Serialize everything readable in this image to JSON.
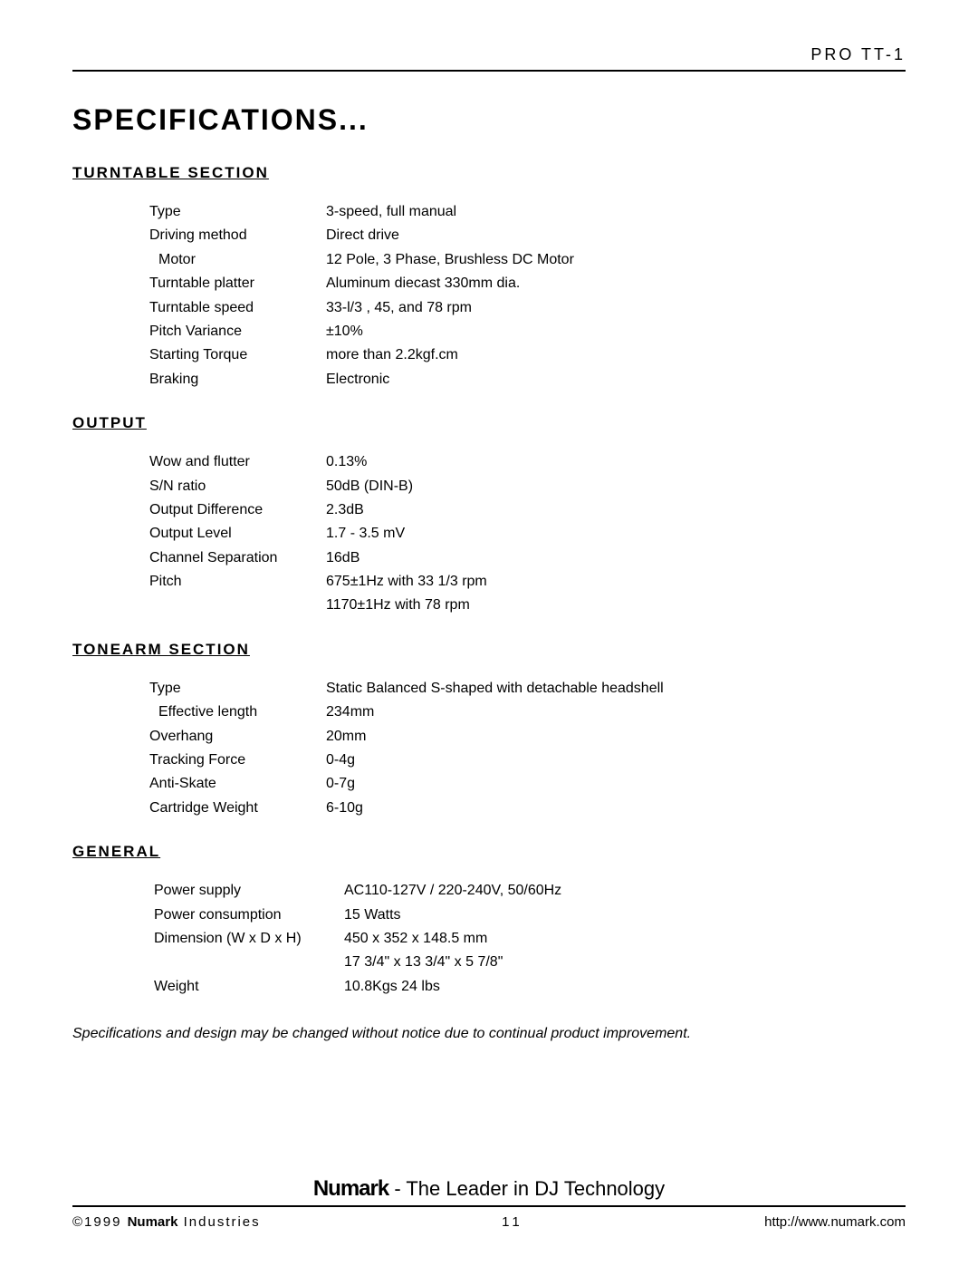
{
  "header": {
    "model": "PRO TT-1"
  },
  "title": "SPECIFICATIONS...",
  "sections": {
    "turntable": {
      "heading": "TURNTABLE SECTION",
      "rows": [
        {
          "label": "Type",
          "value": "3-speed, full manual",
          "indent": false
        },
        {
          "label": "Driving method",
          "value": "Direct drive",
          "indent": false
        },
        {
          "label": "Motor",
          "value": "12 Pole, 3 Phase, Brushless DC Motor",
          "indent": true
        },
        {
          "label": "Turntable platter",
          "value": "Aluminum diecast 330mm dia.",
          "indent": false
        },
        {
          "label": "Turntable speed",
          "value": "33-l/3 , 45, and 78 rpm",
          "indent": false
        },
        {
          "label": "Pitch Variance",
          "value": "±10%",
          "indent": false
        },
        {
          "label": "Starting Torque",
          "value": "more than 2.2kgf.cm",
          "indent": false
        },
        {
          "label": "Braking",
          "value": "Electronic",
          "indent": false
        }
      ]
    },
    "output": {
      "heading": "OUTPUT",
      "rows": [
        {
          "label": "Wow and flutter",
          "value": "0.13%",
          "indent": false
        },
        {
          "label": "S/N ratio",
          "value": "50dB (DIN-B)",
          "indent": false
        },
        {
          "label": "Output Difference",
          "value": "2.3dB",
          "indent": false
        },
        {
          "label": "Output Level",
          "value": "1.7 - 3.5 mV",
          "indent": false
        },
        {
          "label": "Channel Separation",
          "value": "16dB",
          "indent": false
        },
        {
          "label": "Pitch",
          "value": "675±1Hz with 33 1/3 rpm",
          "indent": false
        },
        {
          "label": "",
          "value": "1170±1Hz with 78 rpm",
          "indent": false
        }
      ]
    },
    "tonearm": {
      "heading": "TONEARM SECTION",
      "rows": [
        {
          "label": "Type",
          "value": "Static Balanced S-shaped with detachable headshell",
          "indent": false
        },
        {
          "label": "Effective length",
          "value": "234mm",
          "indent": true
        },
        {
          "label": "Overhang",
          "value": "20mm",
          "indent": false
        },
        {
          "label": "Tracking Force",
          "value": "0-4g",
          "indent": false
        },
        {
          "label": "Anti-Skate",
          "value": "0-7g",
          "indent": false
        },
        {
          "label": "Cartridge Weight",
          "value": "6-10g",
          "indent": false
        }
      ]
    },
    "general": {
      "heading": "GENERAL",
      "rows": [
        {
          "label": "Power supply",
          "value": "AC110-127V / 220-240V, 50/60Hz"
        },
        {
          "label": "Power consumption",
          "value": "15 Watts"
        },
        {
          "label": "Dimension (W x D x H)",
          "value": "450 x 352 x 148.5 mm"
        },
        {
          "label": "",
          "value": "17 3/4\" x 13 3/4\" x 5 7/8\""
        },
        {
          "label": "Weight",
          "value": "10.8Kgs   24 lbs"
        }
      ]
    }
  },
  "disclaimer": "Specifications and design may be changed without notice due to continual product improvement.",
  "footer": {
    "brand": "Numark",
    "tagline_suffix": " - The Leader in DJ Technology",
    "copyright_prefix": "©1999 ",
    "copyright_suffix": " Industries",
    "page_number": "11",
    "url": "http://www.numark.com"
  }
}
